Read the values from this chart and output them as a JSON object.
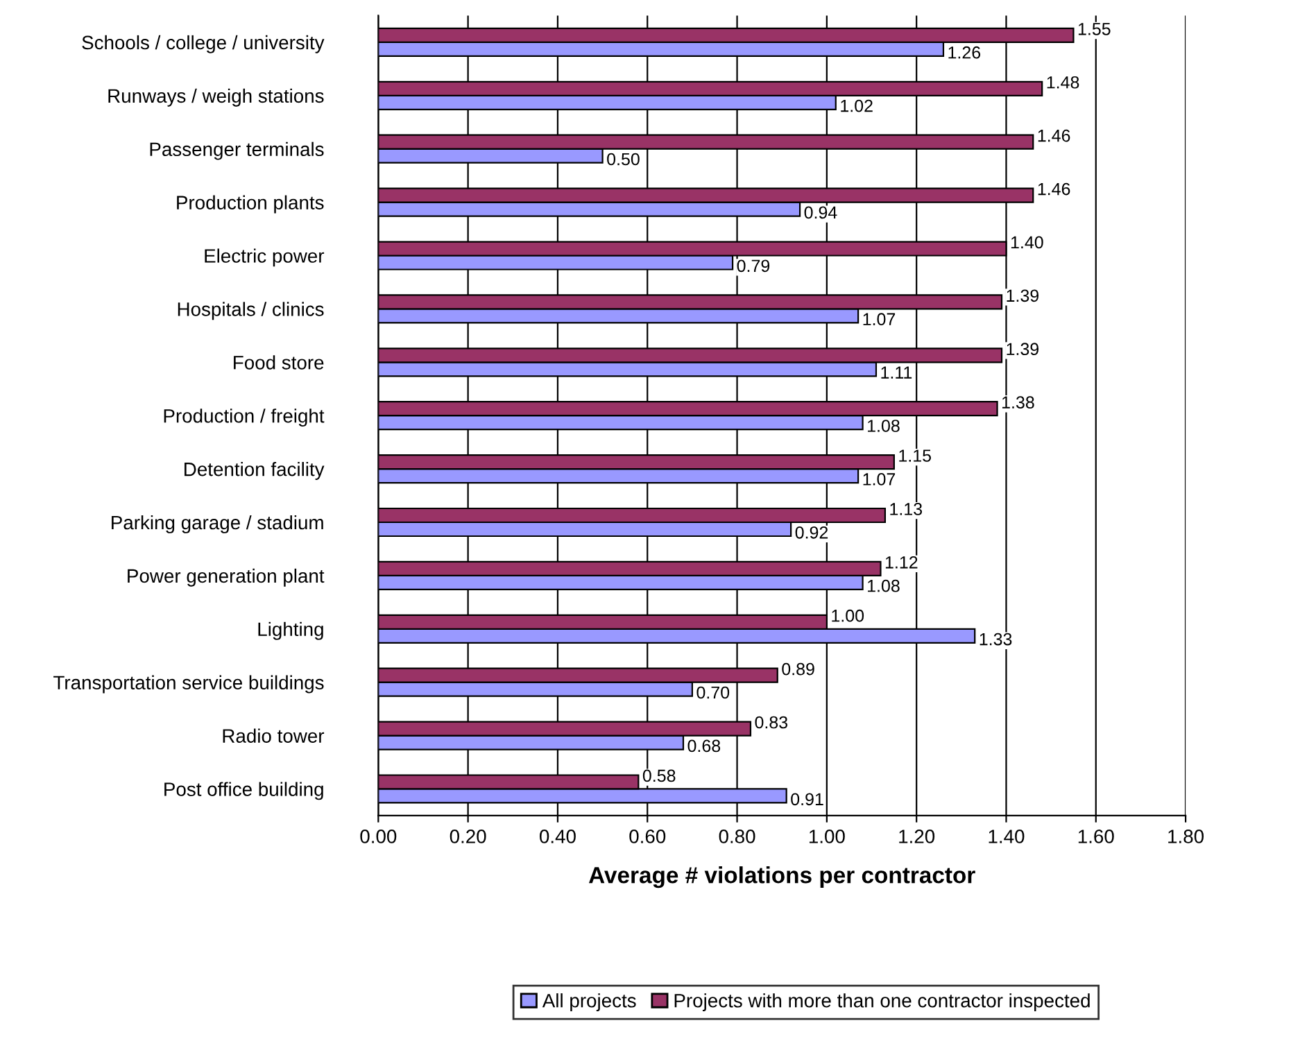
{
  "chart_data": {
    "type": "bar",
    "orientation": "horizontal",
    "xlabel": "Average # violations per contractor",
    "categories": [
      "Schools / college / university",
      "Runways / weigh stations",
      "Passenger terminals",
      "Production plants",
      "Electric power",
      "Hospitals / clinics",
      "Food store",
      "Production / freight",
      "Detention facility",
      "Parking garage / stadium",
      "Power generation plant",
      "Lighting",
      "Transportation service buildings",
      "Radio tower",
      "Post office building"
    ],
    "series": [
      {
        "name": "All projects",
        "color": "#9999ff",
        "values": [
          1.26,
          1.02,
          0.5,
          0.94,
          0.79,
          1.07,
          1.11,
          1.08,
          1.07,
          0.92,
          1.08,
          1.33,
          0.7,
          0.68,
          0.91
        ],
        "value_labels": [
          "1.26",
          "1.02",
          "0.50",
          "0.94",
          "0.79",
          "1.07",
          "1.11",
          "1.08",
          "1.07",
          "0.92",
          "1.08",
          "1.33",
          "0.70",
          "0.68",
          "0.91"
        ]
      },
      {
        "name": "Projects with more than one contractor inspected",
        "color": "#993366",
        "values": [
          1.55,
          1.48,
          1.46,
          1.46,
          1.4,
          1.39,
          1.39,
          1.38,
          1.15,
          1.13,
          1.12,
          1.0,
          0.89,
          0.83,
          0.58
        ],
        "value_labels": [
          "1.55",
          "1.48",
          "1.46",
          "1.46",
          "1.40",
          "1.39",
          "1.39",
          "1.38",
          "1.15",
          "1.13",
          "1.12",
          "1.00",
          "0.89",
          "0.83",
          "0.58"
        ]
      }
    ],
    "xlim": [
      0,
      1.8
    ],
    "xticks": [
      {
        "value": 0,
        "label": "0.00"
      },
      {
        "value": 0.2,
        "label": "0.20"
      },
      {
        "value": 0.4,
        "label": "0.40"
      },
      {
        "value": 0.6,
        "label": "0.60"
      },
      {
        "value": 0.8,
        "label": "0.80"
      },
      {
        "value": 1.0,
        "label": "1.00"
      },
      {
        "value": 1.2,
        "label": "1.20"
      },
      {
        "value": 1.4,
        "label": "1.40"
      },
      {
        "value": 1.6,
        "label": "1.60"
      },
      {
        "value": 1.8,
        "label": "1.80"
      }
    ],
    "grid": "x",
    "legend": "bottom"
  }
}
